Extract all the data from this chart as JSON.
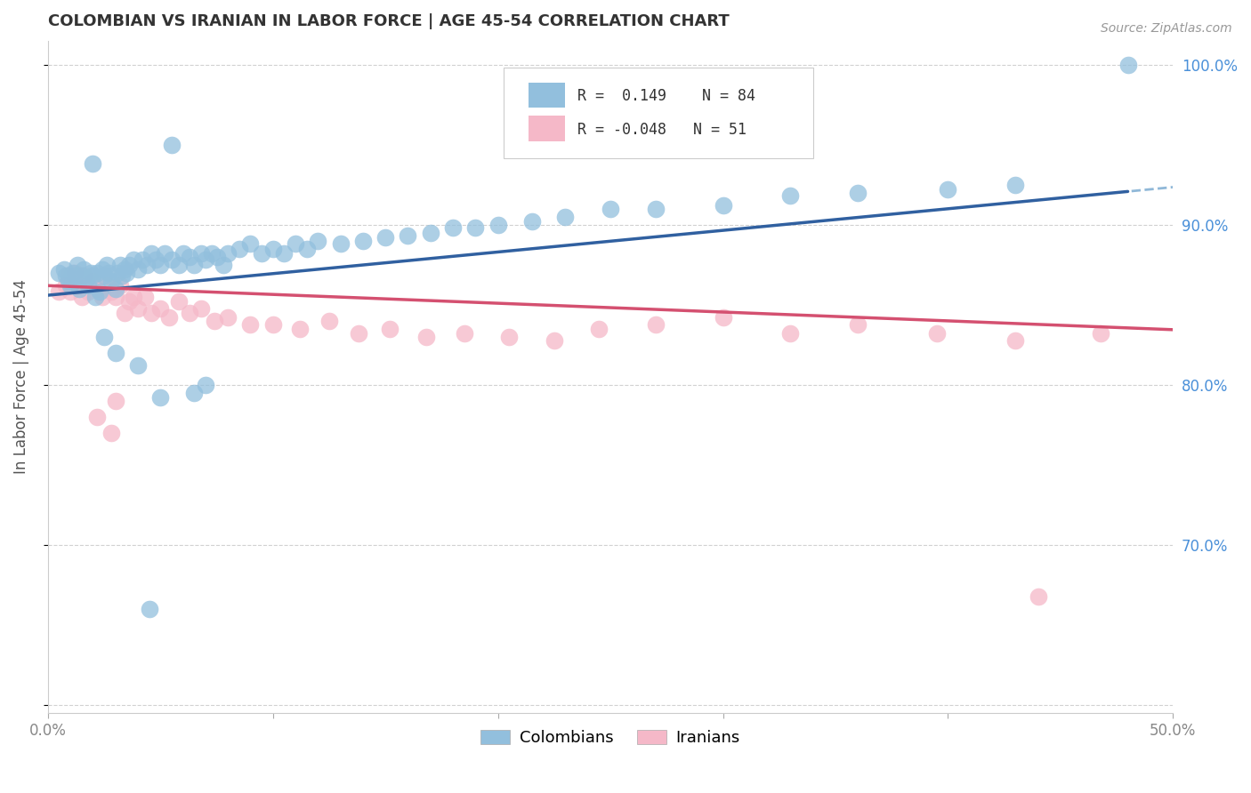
{
  "title": "COLOMBIAN VS IRANIAN IN LABOR FORCE | AGE 45-54 CORRELATION CHART",
  "source": "Source: ZipAtlas.com",
  "ylabel": "In Labor Force | Age 45-54",
  "xlim": [
    0.0,
    0.5
  ],
  "ylim": [
    0.595,
    1.015
  ],
  "xtick_positions": [
    0.0,
    0.1,
    0.2,
    0.3,
    0.4,
    0.5
  ],
  "xticklabels": [
    "0.0%",
    "",
    "",
    "",
    "",
    "50.0%"
  ],
  "ytick_positions": [
    0.6,
    0.7,
    0.8,
    0.9,
    1.0
  ],
  "yticklabels": [
    "",
    "70.0%",
    "80.0%",
    "90.0%",
    "100.0%"
  ],
  "blue_R": 0.149,
  "blue_N": 84,
  "pink_R": -0.048,
  "pink_N": 51,
  "blue_color": "#92bfdd",
  "pink_color": "#f5b8c8",
  "blue_line_color": "#3060a0",
  "pink_line_color": "#d45070",
  "dashed_line_color": "#90b8d8",
  "background_color": "#ffffff",
  "grid_color": "#cccccc",
  "title_color": "#333333",
  "right_tick_color": "#4a90d9",
  "colombians_label": "Colombians",
  "iranians_label": "Iranians",
  "blue_scatter_x": [
    0.005,
    0.007,
    0.008,
    0.009,
    0.01,
    0.011,
    0.012,
    0.013,
    0.014,
    0.015,
    0.016,
    0.017,
    0.018,
    0.019,
    0.02,
    0.021,
    0.022,
    0.023,
    0.024,
    0.025,
    0.026,
    0.027,
    0.028,
    0.03,
    0.031,
    0.032,
    0.033,
    0.034,
    0.035,
    0.036,
    0.038,
    0.04,
    0.042,
    0.044,
    0.046,
    0.048,
    0.05,
    0.052,
    0.055,
    0.058,
    0.06,
    0.063,
    0.065,
    0.068,
    0.07,
    0.073,
    0.075,
    0.078,
    0.08,
    0.085,
    0.09,
    0.095,
    0.1,
    0.105,
    0.11,
    0.115,
    0.12,
    0.13,
    0.14,
    0.15,
    0.16,
    0.17,
    0.18,
    0.19,
    0.2,
    0.215,
    0.23,
    0.25,
    0.27,
    0.3,
    0.33,
    0.36,
    0.4,
    0.43,
    0.02,
    0.055,
    0.025,
    0.03,
    0.04,
    0.07,
    0.48,
    0.05,
    0.065,
    0.045
  ],
  "blue_scatter_y": [
    0.87,
    0.872,
    0.868,
    0.865,
    0.862,
    0.87,
    0.868,
    0.875,
    0.86,
    0.868,
    0.872,
    0.866,
    0.862,
    0.87,
    0.868,
    0.855,
    0.87,
    0.858,
    0.872,
    0.868,
    0.875,
    0.87,
    0.865,
    0.86,
    0.87,
    0.875,
    0.868,
    0.872,
    0.87,
    0.875,
    0.878,
    0.872,
    0.878,
    0.875,
    0.882,
    0.878,
    0.875,
    0.882,
    0.878,
    0.875,
    0.882,
    0.88,
    0.875,
    0.882,
    0.878,
    0.882,
    0.88,
    0.875,
    0.882,
    0.885,
    0.888,
    0.882,
    0.885,
    0.882,
    0.888,
    0.885,
    0.89,
    0.888,
    0.89,
    0.892,
    0.893,
    0.895,
    0.898,
    0.898,
    0.9,
    0.902,
    0.905,
    0.91,
    0.91,
    0.912,
    0.918,
    0.92,
    0.922,
    0.925,
    0.938,
    0.95,
    0.83,
    0.82,
    0.812,
    0.8,
    1.0,
    0.792,
    0.795,
    0.66
  ],
  "pink_scatter_x": [
    0.005,
    0.008,
    0.009,
    0.01,
    0.012,
    0.014,
    0.015,
    0.016,
    0.018,
    0.02,
    0.022,
    0.024,
    0.026,
    0.028,
    0.03,
    0.032,
    0.034,
    0.036,
    0.038,
    0.04,
    0.043,
    0.046,
    0.05,
    0.054,
    0.058,
    0.063,
    0.068,
    0.074,
    0.08,
    0.09,
    0.1,
    0.112,
    0.125,
    0.138,
    0.152,
    0.168,
    0.185,
    0.205,
    0.225,
    0.245,
    0.27,
    0.3,
    0.33,
    0.36,
    0.395,
    0.43,
    0.468,
    0.03,
    0.022,
    0.028,
    0.44
  ],
  "pink_scatter_y": [
    0.858,
    0.862,
    0.868,
    0.858,
    0.87,
    0.862,
    0.855,
    0.868,
    0.858,
    0.865,
    0.86,
    0.855,
    0.862,
    0.858,
    0.855,
    0.862,
    0.845,
    0.852,
    0.855,
    0.848,
    0.855,
    0.845,
    0.848,
    0.842,
    0.852,
    0.845,
    0.848,
    0.84,
    0.842,
    0.838,
    0.838,
    0.835,
    0.84,
    0.832,
    0.835,
    0.83,
    0.832,
    0.83,
    0.828,
    0.835,
    0.838,
    0.842,
    0.832,
    0.838,
    0.832,
    0.828,
    0.832,
    0.79,
    0.78,
    0.77,
    0.668
  ]
}
